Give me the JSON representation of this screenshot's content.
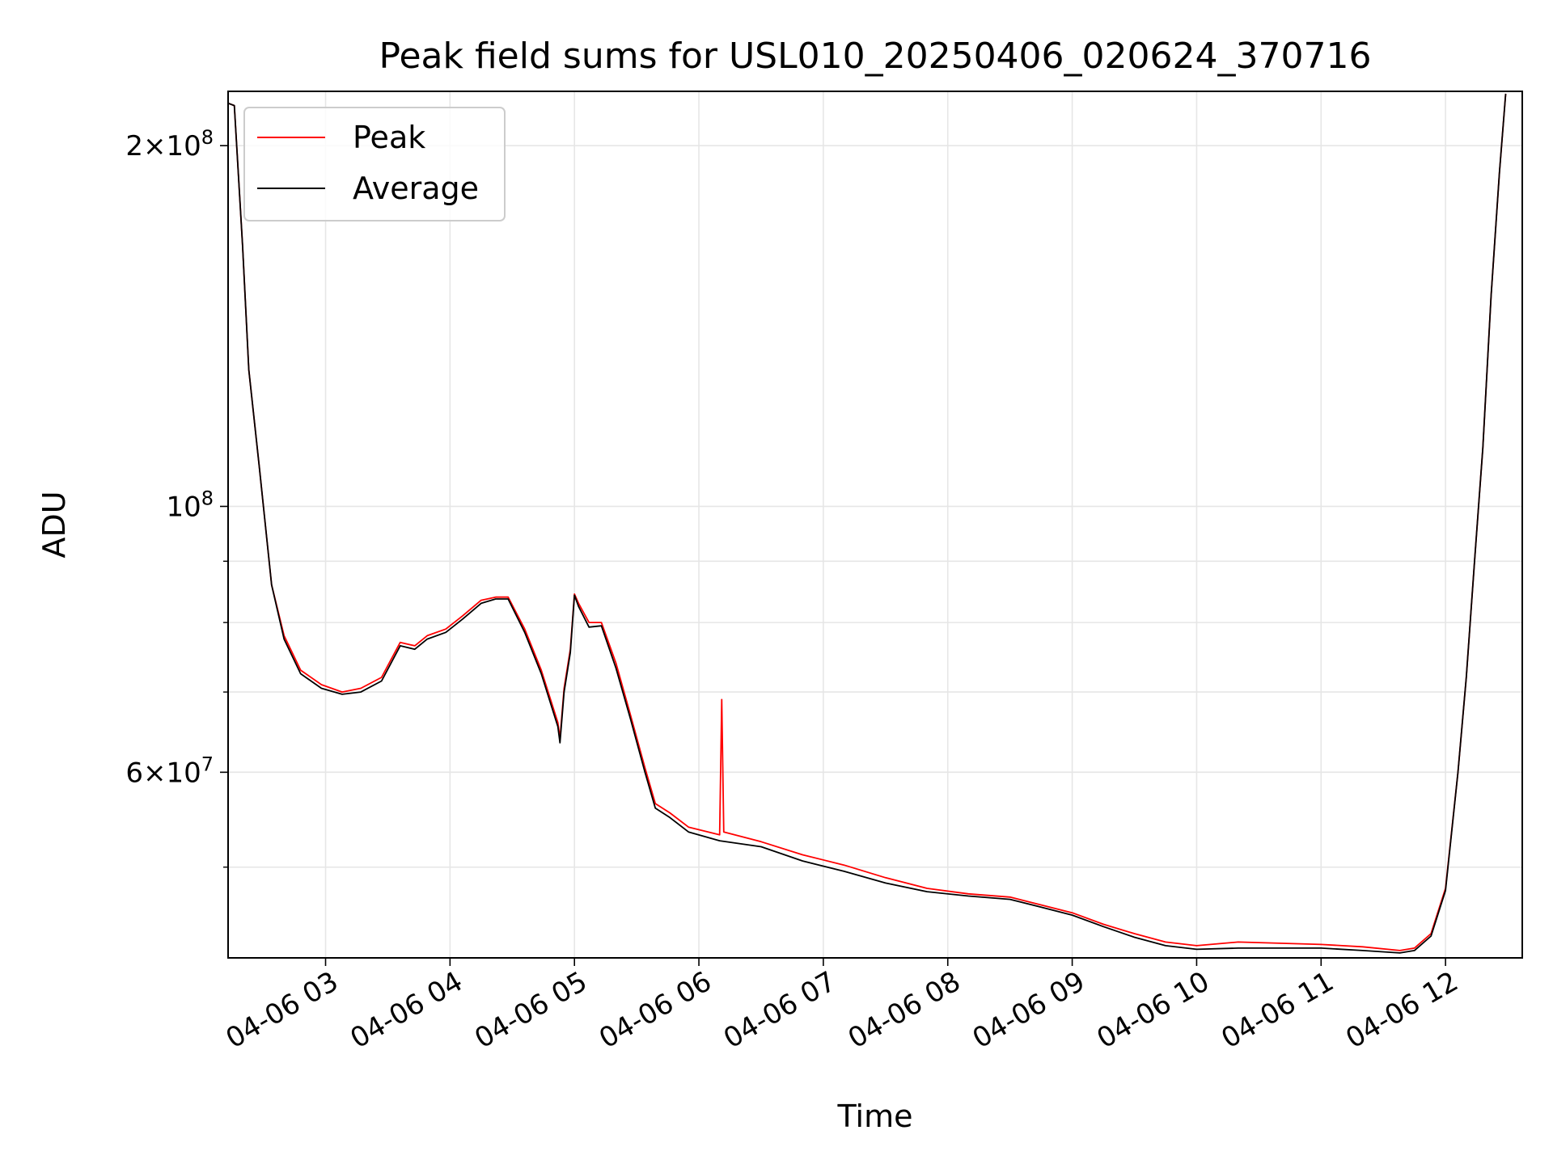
{
  "chart_data": {
    "type": "line",
    "title": "Peak field sums for USL010_20250406_020624_370716",
    "xlabel": "Time",
    "ylabel": "ADU",
    "yscale": "log",
    "grid": true,
    "legend_position": "upper-left",
    "xlim": [
      "04-06 02:13",
      "04-06 12:37"
    ],
    "ylim": [
      42000000,
      222000000
    ],
    "x_tick_labels": [
      "04-06 03",
      "04-06 04",
      "04-06 05",
      "04-06 06",
      "04-06 07",
      "04-06 08",
      "04-06 09",
      "04-06 10",
      "04-06 11",
      "04-06 12"
    ],
    "y_tick_labels": [
      {
        "value": 200000000,
        "mantissa": "2",
        "times": "×",
        "base": "10",
        "exp": "8"
      },
      {
        "value": 100000000,
        "mantissa": "",
        "times": "",
        "base": "10",
        "exp": "8"
      },
      {
        "value": 60000000,
        "mantissa": "6",
        "times": "×",
        "base": "10",
        "exp": "7"
      }
    ],
    "series": [
      {
        "name": "Peak",
        "color": "#ff0000",
        "points": [
          [
            "02:13",
            217000000
          ],
          [
            "02:16",
            216000000
          ],
          [
            "02:20",
            165000000
          ],
          [
            "02:23",
            130000000
          ],
          [
            "02:28",
            108000000
          ],
          [
            "02:34",
            86000000
          ],
          [
            "02:40",
            78000000
          ],
          [
            "02:48",
            73000000
          ],
          [
            "02:58",
            71000000
          ],
          [
            "03:08",
            70000000
          ],
          [
            "03:17",
            70500000
          ],
          [
            "03:27",
            72000000
          ],
          [
            "03:36",
            77000000
          ],
          [
            "03:43",
            76500000
          ],
          [
            "03:49",
            78000000
          ],
          [
            "03:58",
            79000000
          ],
          [
            "04:06",
            81000000
          ],
          [
            "04:15",
            83500000
          ],
          [
            "04:22",
            84000000
          ],
          [
            "04:28",
            84000000
          ],
          [
            "04:36",
            79000000
          ],
          [
            "04:44",
            73000000
          ],
          [
            "04:52",
            66000000
          ],
          [
            "04:53",
            64000000
          ],
          [
            "04:55",
            70500000
          ],
          [
            "04:58",
            76000000
          ],
          [
            "05:00",
            84500000
          ],
          [
            "05:02",
            83000000
          ],
          [
            "05:07",
            80000000
          ],
          [
            "05:13",
            80000000
          ],
          [
            "05:20",
            74000000
          ],
          [
            "05:27",
            67000000
          ],
          [
            "05:34",
            60500000
          ],
          [
            "05:39",
            56500000
          ],
          [
            "05:46",
            55500000
          ],
          [
            "05:55",
            54000000
          ],
          [
            "06:10",
            53200000
          ],
          [
            "06:11",
            69000000
          ],
          [
            "06:12",
            53500000
          ],
          [
            "06:30",
            52500000
          ],
          [
            "06:50",
            51200000
          ],
          [
            "07:10",
            50200000
          ],
          [
            "07:30",
            49000000
          ],
          [
            "07:50",
            48000000
          ],
          [
            "08:10",
            47500000
          ],
          [
            "08:30",
            47200000
          ],
          [
            "08:45",
            46500000
          ],
          [
            "09:00",
            45800000
          ],
          [
            "09:15",
            44800000
          ],
          [
            "09:30",
            44000000
          ],
          [
            "09:45",
            43300000
          ],
          [
            "10:00",
            43000000
          ],
          [
            "10:20",
            43300000
          ],
          [
            "10:40",
            43200000
          ],
          [
            "11:00",
            43100000
          ],
          [
            "11:20",
            42900000
          ],
          [
            "11:38",
            42600000
          ],
          [
            "11:45",
            42800000
          ],
          [
            "11:53",
            44000000
          ],
          [
            "12:00",
            48000000
          ],
          [
            "12:06",
            60000000
          ],
          [
            "12:10",
            72000000
          ],
          [
            "12:14",
            90000000
          ],
          [
            "12:18",
            112000000
          ],
          [
            "12:22",
            150000000
          ],
          [
            "12:26",
            190000000
          ],
          [
            "12:29",
            221000000
          ]
        ]
      },
      {
        "name": "Average",
        "color": "#000000",
        "points": [
          [
            "02:13",
            217000000
          ],
          [
            "02:16",
            216000000
          ],
          [
            "02:20",
            165000000
          ],
          [
            "02:23",
            130000000
          ],
          [
            "02:28",
            108000000
          ],
          [
            "02:34",
            86000000
          ],
          [
            "02:40",
            77500000
          ],
          [
            "02:48",
            72500000
          ],
          [
            "02:58",
            70500000
          ],
          [
            "03:08",
            69700000
          ],
          [
            "03:17",
            70000000
          ],
          [
            "03:27",
            71500000
          ],
          [
            "03:36",
            76500000
          ],
          [
            "03:43",
            76000000
          ],
          [
            "03:49",
            77500000
          ],
          [
            "03:58",
            78500000
          ],
          [
            "04:06",
            80500000
          ],
          [
            "04:15",
            83000000
          ],
          [
            "04:22",
            83700000
          ],
          [
            "04:28",
            83700000
          ],
          [
            "04:36",
            78500000
          ],
          [
            "04:44",
            72500000
          ],
          [
            "04:52",
            65500000
          ],
          [
            "04:53",
            63500000
          ],
          [
            "04:55",
            70000000
          ],
          [
            "04:58",
            75500000
          ],
          [
            "05:00",
            84300000
          ],
          [
            "05:02",
            82500000
          ],
          [
            "05:07",
            79300000
          ],
          [
            "05:13",
            79500000
          ],
          [
            "05:20",
            73300000
          ],
          [
            "05:27",
            66500000
          ],
          [
            "05:34",
            60000000
          ],
          [
            "05:39",
            56000000
          ],
          [
            "05:46",
            55000000
          ],
          [
            "05:55",
            53500000
          ],
          [
            "06:10",
            52600000
          ],
          [
            "06:30",
            52000000
          ],
          [
            "06:50",
            50600000
          ],
          [
            "07:10",
            49600000
          ],
          [
            "07:30",
            48500000
          ],
          [
            "07:50",
            47700000
          ],
          [
            "08:10",
            47300000
          ],
          [
            "08:30",
            47000000
          ],
          [
            "08:45",
            46300000
          ],
          [
            "09:00",
            45600000
          ],
          [
            "09:15",
            44600000
          ],
          [
            "09:30",
            43700000
          ],
          [
            "09:45",
            43000000
          ],
          [
            "10:00",
            42700000
          ],
          [
            "10:20",
            42800000
          ],
          [
            "10:40",
            42800000
          ],
          [
            "11:00",
            42800000
          ],
          [
            "11:20",
            42600000
          ],
          [
            "11:38",
            42400000
          ],
          [
            "11:45",
            42600000
          ],
          [
            "11:53",
            43800000
          ],
          [
            "12:00",
            47800000
          ],
          [
            "12:06",
            60000000
          ],
          [
            "12:10",
            72000000
          ],
          [
            "12:14",
            90000000
          ],
          [
            "12:18",
            112000000
          ],
          [
            "12:22",
            150000000
          ],
          [
            "12:26",
            190000000
          ],
          [
            "12:29",
            221000000
          ]
        ]
      }
    ]
  }
}
